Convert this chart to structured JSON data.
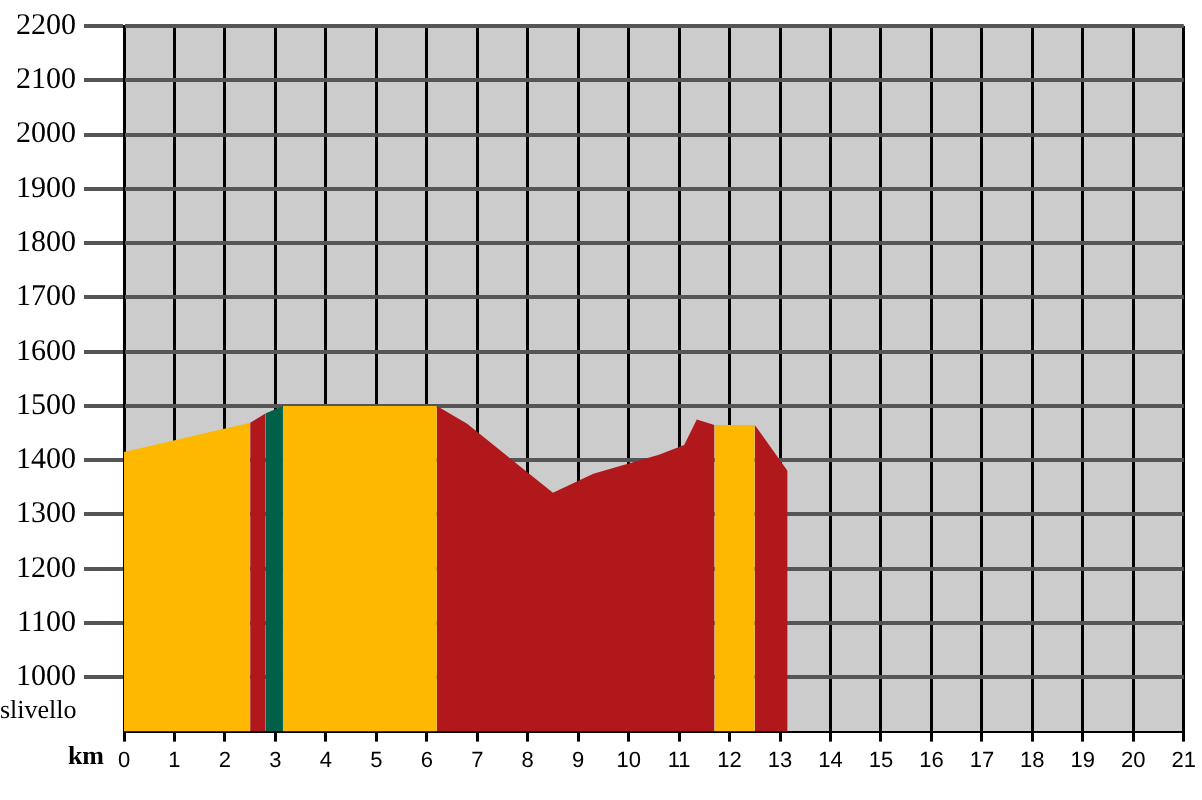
{
  "chart_data": {
    "type": "area",
    "xlabel": "km",
    "ylabel": "slivello",
    "xlim": [
      0,
      21
    ],
    "xticks": [
      0,
      1,
      2,
      3,
      4,
      5,
      6,
      7,
      8,
      9,
      10,
      11,
      12,
      13,
      14,
      15,
      16,
      17,
      18,
      19,
      20,
      21
    ],
    "ylim": [
      900,
      2200
    ],
    "yticks": [
      1000,
      1100,
      1200,
      1300,
      1400,
      1500,
      1600,
      1700,
      1800,
      1900,
      2000,
      2100,
      2200
    ],
    "grid": true,
    "legend": false,
    "marker": "none",
    "series": [
      {
        "color": "#ffb800",
        "x": [
          0,
          2.5
        ],
        "values": [
          1415,
          1469
        ]
      },
      {
        "color": "#b0181c",
        "x": [
          2.5,
          2.8
        ],
        "values": [
          1469,
          1486
        ]
      },
      {
        "color": "#006048",
        "x": [
          2.8,
          3.15
        ],
        "values": [
          1486,
          1500
        ]
      },
      {
        "color": "#ffb800",
        "x": [
          3.15,
          6.2
        ],
        "values": [
          1500,
          1500
        ]
      },
      {
        "color": "#b0181c",
        "x": [
          6.2,
          6.8,
          8.5,
          9.3,
          10.6,
          11.1,
          11.35,
          11.7
        ],
        "values": [
          1500,
          1467,
          1340,
          1375,
          1410,
          1428,
          1475,
          1465
        ]
      },
      {
        "color": "#ffb800",
        "x": [
          11.7,
          12.5
        ],
        "values": [
          1465,
          1465
        ]
      },
      {
        "color": "#b0181c",
        "x": [
          12.5,
          13.15
        ],
        "values": [
          1465,
          1380
        ]
      }
    ]
  }
}
